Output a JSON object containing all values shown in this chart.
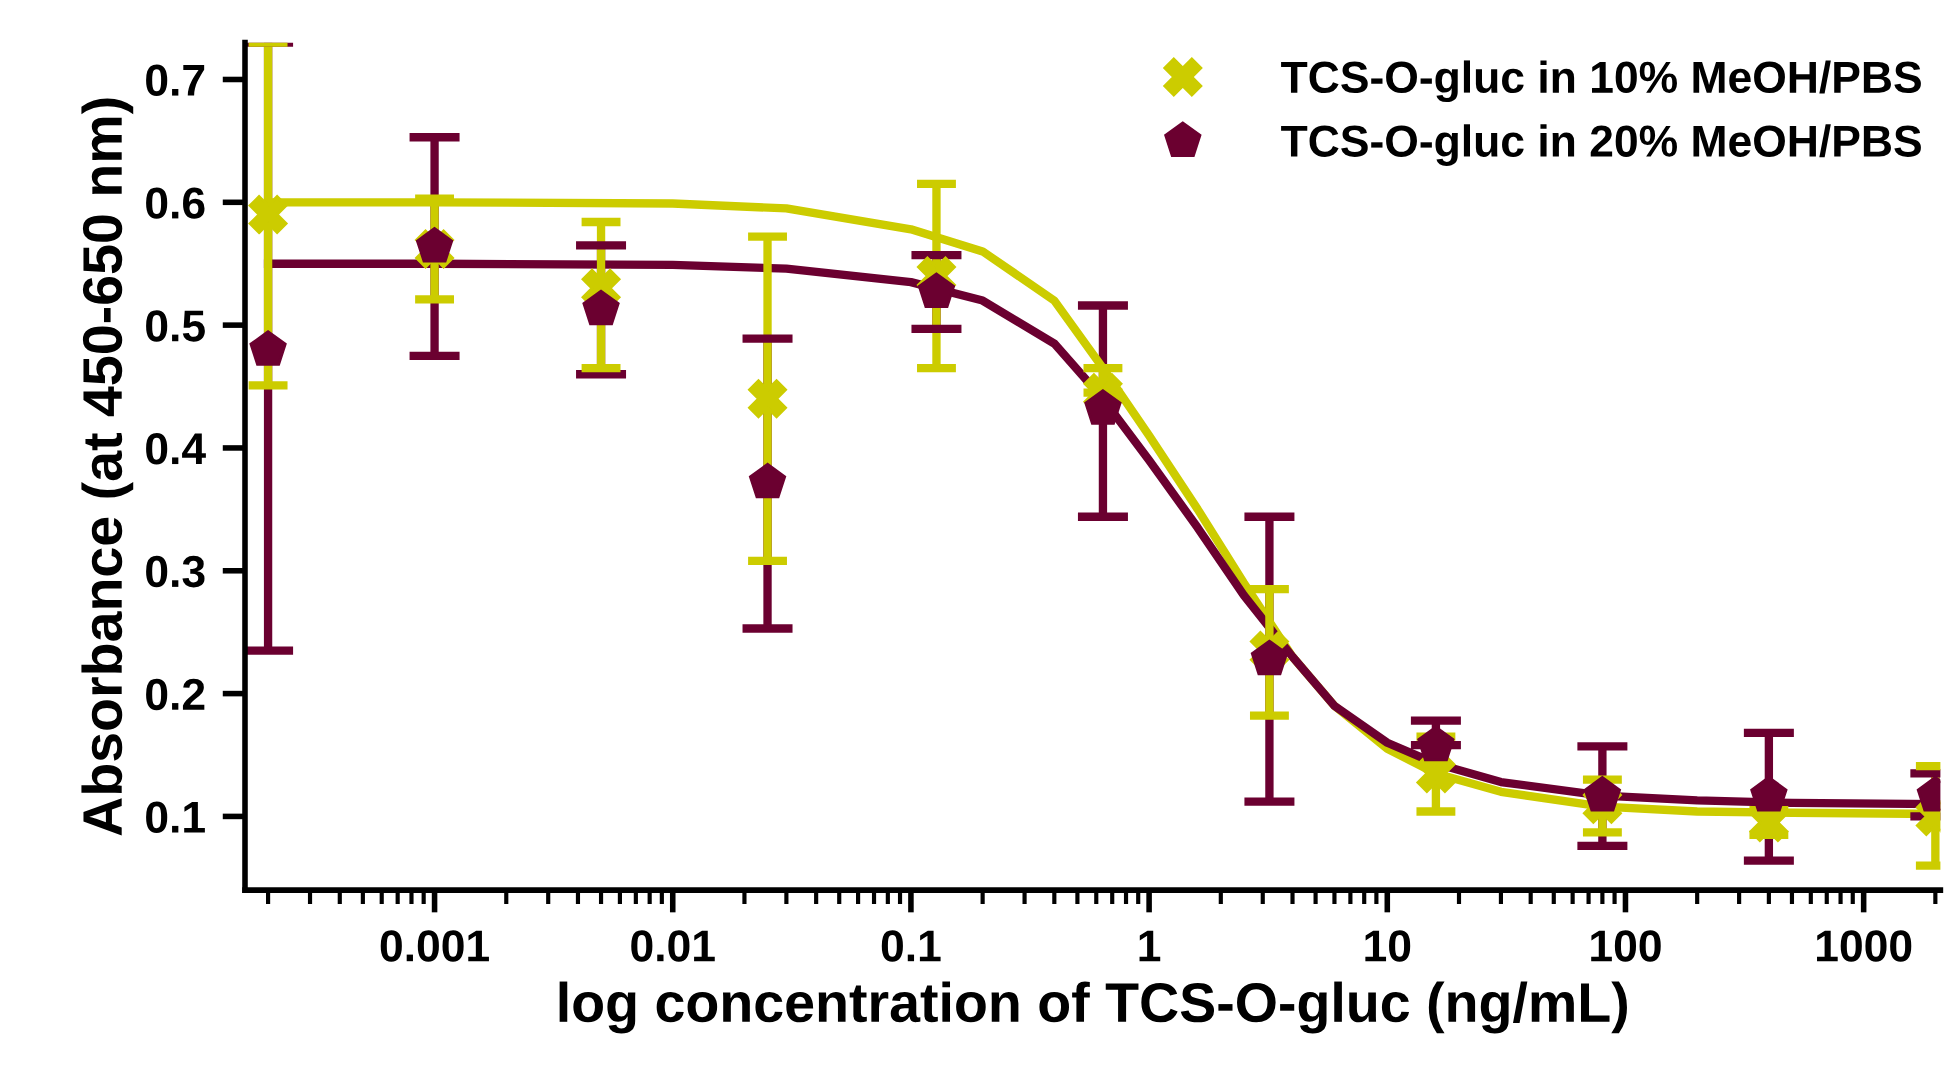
{
  "chart_data": {
    "type": "scatter",
    "xlabel": "log concentration of TCS-O-gluc (ng/mL)",
    "ylabel": "Absorbance (at 450-650 nm)",
    "x": [
      0.0002,
      0.001,
      0.005,
      0.025,
      0.128,
      0.64,
      3.2,
      16,
      80,
      400,
      2000
    ],
    "log": "x",
    "xlim": [
      0.00016,
      2100
    ],
    "xticks": [
      0.001,
      0.01,
      0.1,
      1,
      10,
      100,
      1000
    ],
    "ylim": [
      0.04,
      0.73
    ],
    "yticks": [
      0.1,
      0.2,
      0.3,
      0.4,
      0.5,
      0.6,
      0.7
    ],
    "grid": false,
    "legend": "top right",
    "series": [
      {
        "name": "TCS-O-gluc in 10% MeOH/PBS",
        "color": "#cccc00",
        "marker": "cross",
        "values": [
          0.59,
          0.562,
          0.53,
          0.44,
          0.54,
          0.445,
          0.235,
          0.135,
          0.11,
          0.095,
          0.1
        ],
        "errors": [
          [
            0.451,
            0.73
          ],
          [
            0.521,
            0.603
          ],
          [
            0.465,
            0.584
          ],
          [
            0.308,
            0.572
          ],
          [
            0.465,
            0.615
          ],
          [
            0.445,
            0.465
          ],
          [
            0.182,
            0.285
          ],
          [
            0.104,
            0.165
          ],
          [
            0.087,
            0.13
          ],
          [
            0.085,
            0.105
          ],
          [
            0.06,
            0.141
          ]
        ]
      },
      {
        "name": "TCS-O-gluc in 20% MeOH/PBS",
        "color": "#6b0030",
        "values": [
          0.48,
          0.564,
          0.513,
          0.372,
          0.527,
          0.432,
          0.228,
          0.158,
          0.117,
          0.117,
          0.117
        ],
        "errors": [
          [
            0.235,
            0.73
          ],
          [
            0.475,
            0.653
          ],
          [
            0.46,
            0.565
          ],
          [
            0.253,
            0.489
          ],
          [
            0.497,
            0.557
          ],
          [
            0.344,
            0.516
          ],
          [
            0.112,
            0.344
          ],
          [
            0.158,
            0.178
          ],
          [
            0.076,
            0.157
          ],
          [
            0.064,
            0.168
          ],
          [
            0.1,
            0.135
          ]
        ]
      },
      {
        "type": "line",
        "color": "#cccc00",
        "marker": "none",
        "x": [
          0.0002,
          0.001,
          0.01,
          0.03,
          0.1,
          0.2,
          0.4,
          0.64,
          1,
          1.6,
          2.5,
          4,
          6,
          10,
          16,
          30,
          80,
          200,
          500,
          2000
        ],
        "values": [
          0.6,
          0.6,
          0.599,
          0.595,
          0.578,
          0.56,
          0.52,
          0.465,
          0.41,
          0.35,
          0.29,
          0.23,
          0.19,
          0.155,
          0.135,
          0.12,
          0.108,
          0.104,
          0.103,
          0.102
        ]
      },
      {
        "type": "line",
        "color": "#6b0030",
        "marker": "none",
        "x": [
          0.0002,
          0.001,
          0.01,
          0.03,
          0.1,
          0.2,
          0.4,
          0.64,
          1,
          1.6,
          2.5,
          4,
          6,
          10,
          16,
          30,
          80,
          200,
          500,
          2000
        ],
        "values": [
          0.55,
          0.55,
          0.549,
          0.546,
          0.535,
          0.52,
          0.485,
          0.44,
          0.39,
          0.335,
          0.28,
          0.23,
          0.19,
          0.16,
          0.143,
          0.128,
          0.117,
          0.113,
          0.111,
          0.11
        ]
      }
    ]
  }
}
